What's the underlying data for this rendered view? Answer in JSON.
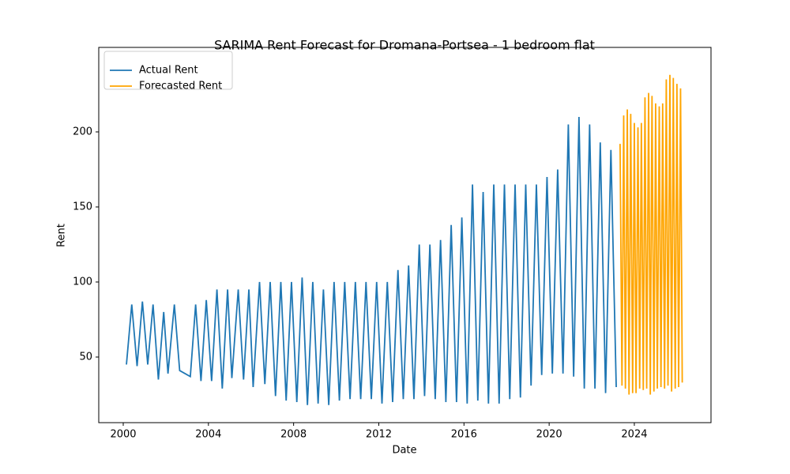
{
  "chart_data": {
    "type": "line",
    "title": "SARIMA Rent Forecast for Dromana-Portsea - 1 bedroom flat",
    "x_label": "Date",
    "y_label": "Rent",
    "xlim": [
      1998.85,
      2027.6
    ],
    "ylim": [
      6.3,
      256.3
    ],
    "xticks": [
      2000,
      2004,
      2008,
      2012,
      2016,
      2020,
      2024
    ],
    "yticks": [
      50,
      100,
      150,
      200
    ],
    "legend": "upper left",
    "series": [
      {
        "name": "Actual Rent",
        "color": "#1f77b4",
        "x": [
          2000.15,
          2000.4,
          2000.65,
          2000.9,
          2001.15,
          2001.4,
          2001.65,
          2001.9,
          2002.1,
          2002.4,
          2002.65,
          2003.15,
          2003.4,
          2003.65,
          2003.9,
          2004.15,
          2004.4,
          2004.65,
          2004.9,
          2005.1,
          2005.4,
          2005.65,
          2005.9,
          2006.1,
          2006.4,
          2006.65,
          2006.9,
          2007.15,
          2007.4,
          2007.65,
          2007.9,
          2008.15,
          2008.4,
          2008.65,
          2008.9,
          2009.15,
          2009.4,
          2009.65,
          2009.9,
          2010.15,
          2010.4,
          2010.65,
          2010.9,
          2011.15,
          2011.4,
          2011.65,
          2011.9,
          2012.15,
          2012.4,
          2012.65,
          2012.9,
          2013.15,
          2013.4,
          2013.65,
          2013.9,
          2014.15,
          2014.4,
          2014.65,
          2014.9,
          2015.15,
          2015.4,
          2015.65,
          2015.9,
          2016.15,
          2016.4,
          2016.65,
          2016.9,
          2017.15,
          2017.4,
          2017.65,
          2017.9,
          2018.15,
          2018.4,
          2018.65,
          2018.9,
          2019.15,
          2019.4,
          2019.65,
          2019.9,
          2020.15,
          2020.4,
          2020.65,
          2020.9,
          2021.15,
          2021.4,
          2021.65,
          2021.9,
          2022.15,
          2022.4,
          2022.65,
          2022.9,
          2023.15
        ],
        "values": [
          45,
          85,
          44,
          87,
          45,
          85,
          35,
          80,
          39,
          85,
          41,
          37,
          85,
          34,
          88,
          34,
          95,
          29,
          95,
          36,
          95,
          35,
          95,
          30,
          100,
          32,
          100,
          24,
          100,
          21,
          100,
          20,
          103,
          18,
          100,
          19,
          95,
          18,
          100,
          21,
          100,
          22,
          100,
          22,
          100,
          22,
          100,
          19,
          100,
          20,
          108,
          22,
          111,
          22,
          125,
          24,
          125,
          22,
          128,
          20,
          138,
          20,
          143,
          19,
          165,
          21,
          160,
          19,
          165,
          19,
          165,
          22,
          165,
          23,
          165,
          31,
          165,
          38,
          170,
          39,
          175,
          39,
          205,
          37,
          210,
          29,
          205,
          29,
          193,
          26,
          188,
          30
        ]
      },
      {
        "name": "Forecasted Rent",
        "color": "#ffa500",
        "x": [
          2023.33,
          2023.42,
          2023.5,
          2023.58,
          2023.67,
          2023.75,
          2023.83,
          2023.92,
          2024.0,
          2024.08,
          2024.17,
          2024.25,
          2024.33,
          2024.42,
          2024.5,
          2024.58,
          2024.67,
          2024.75,
          2024.83,
          2024.92,
          2025.0,
          2025.08,
          2025.17,
          2025.25,
          2025.33,
          2025.42,
          2025.5,
          2025.58,
          2025.67,
          2025.75,
          2025.83,
          2025.92,
          2026.0,
          2026.08,
          2026.17,
          2026.25
        ],
        "values": [
          192,
          31,
          211,
          29,
          215,
          25,
          212,
          26,
          206,
          26,
          203,
          29,
          206,
          28,
          223,
          29,
          226,
          25,
          224,
          27,
          219,
          29,
          217,
          30,
          219,
          29,
          235,
          31,
          238,
          27,
          236,
          29,
          232,
          30,
          229,
          33
        ]
      }
    ]
  }
}
